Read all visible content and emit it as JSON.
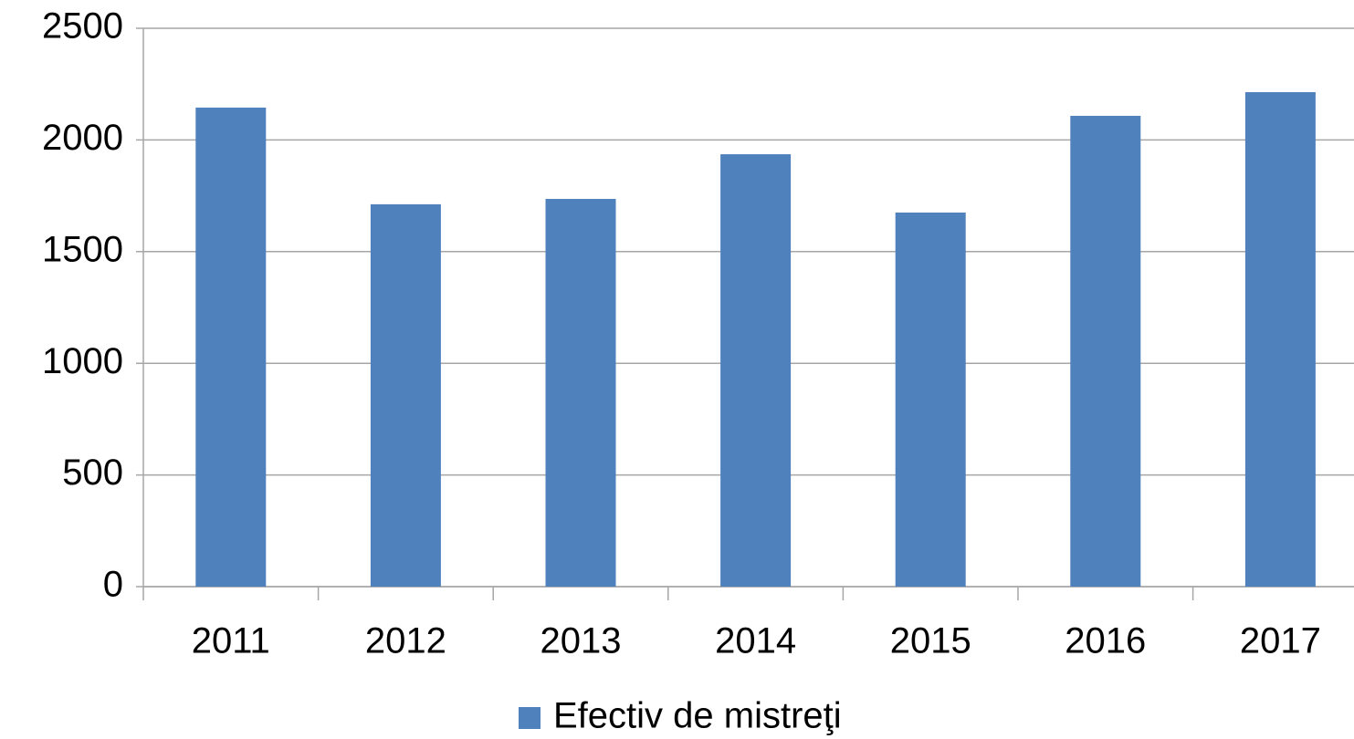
{
  "chart_data": {
    "type": "bar",
    "categories": [
      "2011",
      "2012",
      "2013",
      "2014",
      "2015",
      "2016",
      "2017"
    ],
    "series": [
      {
        "name": "Efectiv de mistreţi",
        "color": "#4f81bd",
        "values": [
          2145,
          1712,
          1736,
          1936,
          1675,
          2108,
          2214
        ]
      }
    ],
    "ylim": [
      0,
      2500
    ],
    "yticks": [
      0,
      500,
      1000,
      1500,
      2000,
      2500
    ],
    "grid": true,
    "legend": "bottom"
  }
}
